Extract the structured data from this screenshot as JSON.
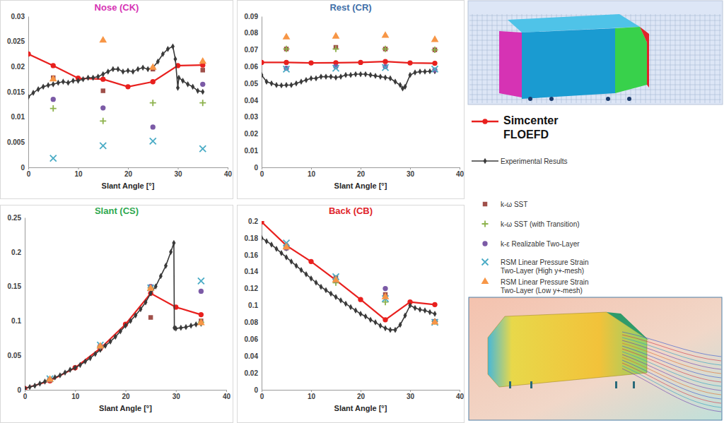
{
  "chart_data": [
    {
      "type": "line",
      "title": "Nose (CK)",
      "color": "#d633b4",
      "xlabel": "Slant Angle [°]",
      "xlim": [
        0,
        40
      ],
      "xticks": [
        0,
        10,
        20,
        30,
        40
      ],
      "ylim": [
        0,
        0.03
      ],
      "yticks": [
        0,
        0.005,
        0.01,
        0.015,
        0.02,
        0.025,
        0.03
      ],
      "grid": false,
      "legend": "right",
      "series": [
        {
          "name": "Simcenter FLOEFD",
          "type": "line",
          "color": "#e8201e",
          "marker": "circle",
          "line_style": "solid",
          "x": [
            0,
            5,
            10,
            15,
            20,
            25,
            30,
            35
          ],
          "values": [
            0.0225,
            0.0202,
            0.0177,
            0.0175,
            0.016,
            0.017,
            0.0202,
            0.0203
          ]
        },
        {
          "name": "Experimental Results",
          "type": "line",
          "color": "#3a3a3a",
          "marker": "diamond",
          "line_style": "solid",
          "x": [
            0,
            1,
            2,
            3,
            4,
            5,
            6,
            7,
            8,
            9,
            10,
            11,
            12,
            13,
            14,
            15,
            16,
            17,
            18,
            19,
            20,
            21,
            22,
            23,
            24,
            25,
            26,
            27,
            28,
            29,
            29.5,
            30,
            30.2,
            31,
            32,
            33,
            34,
            35
          ],
          "values": [
            0.014,
            0.0148,
            0.0155,
            0.016,
            0.0163,
            0.0165,
            0.0168,
            0.017,
            0.0168,
            0.0172,
            0.0172,
            0.0175,
            0.0178,
            0.0178,
            0.018,
            0.0185,
            0.019,
            0.0195,
            0.0195,
            0.019,
            0.0192,
            0.019,
            0.0195,
            0.0198,
            0.0195,
            0.0198,
            0.021,
            0.0225,
            0.0235,
            0.024,
            0.0215,
            0.0158,
            0.0178,
            0.0172,
            0.0165,
            0.016,
            0.0152,
            0.015
          ]
        },
        {
          "name": "k-ω SST",
          "type": "scatter",
          "color": "#a0504a",
          "marker": "square",
          "x": [
            5,
            15,
            25,
            35
          ],
          "values": [
            0.0178,
            0.0152,
            0.0195,
            0.0193
          ]
        },
        {
          "name": "k-ω SST (with Transition)",
          "type": "scatter",
          "color": "#8db24c",
          "marker": "plus",
          "x": [
            5,
            15,
            25,
            35
          ],
          "values": [
            0.0117,
            0.0092,
            0.0128,
            0.0128
          ]
        },
        {
          "name": "k-ε Realizable Two-Layer",
          "type": "scatter",
          "color": "#7b5aa6",
          "marker": "circle",
          "x": [
            5,
            15,
            25,
            35
          ],
          "values": [
            0.0135,
            0.0118,
            0.008,
            0.0165
          ]
        },
        {
          "name": "RSM Linear Pressure Strain Two-Layer (High y+-mesh)",
          "type": "scatter",
          "color": "#4bacc6",
          "marker": "x",
          "x": [
            5,
            15,
            25,
            35
          ],
          "values": [
            0.0018,
            0.0043,
            0.0052,
            0.0037
          ]
        },
        {
          "name": "RSM Linear Pressure Strain Two-Layer (Low y+-mesh)",
          "type": "scatter",
          "color": "#f79646",
          "marker": "triangle",
          "x": [
            5,
            15,
            25,
            35
          ],
          "values": [
            0.0175,
            0.0252,
            0.0198,
            0.021
          ]
        }
      ]
    },
    {
      "type": "line",
      "title": "Rest (CR)",
      "color": "#3f6fa8",
      "xlabel": "Slant Angle [°]",
      "xlim": [
        0,
        40
      ],
      "xticks": [
        0,
        10,
        20,
        30,
        40
      ],
      "ylim": [
        0,
        0.09
      ],
      "yticks": [
        0,
        0.01,
        0.02,
        0.03,
        0.04,
        0.05,
        0.06,
        0.07,
        0.08,
        0.09
      ],
      "grid": false,
      "series": [
        {
          "type": "line",
          "color": "#e8201e",
          "marker": "circle",
          "line_style": "solid",
          "x": [
            0,
            5,
            10,
            15,
            20,
            25,
            30,
            35
          ],
          "values": [
            0.0625,
            0.0625,
            0.0622,
            0.0623,
            0.0625,
            0.063,
            0.0622,
            0.062
          ]
        },
        {
          "type": "line",
          "color": "#3a3a3a",
          "marker": "diamond",
          "line_style": "solid",
          "x": [
            0,
            1,
            2,
            3,
            4,
            5,
            6,
            7,
            8,
            9,
            10,
            11,
            12,
            13,
            14,
            15,
            16,
            17,
            18,
            19,
            20,
            21,
            22,
            23,
            24,
            25,
            26,
            27,
            28,
            28.5,
            29,
            30,
            31,
            32,
            33,
            34,
            35
          ],
          "values": [
            0.055,
            0.051,
            0.05,
            0.049,
            0.0488,
            0.049,
            0.049,
            0.05,
            0.051,
            0.052,
            0.053,
            0.053,
            0.054,
            0.054,
            0.054,
            0.0535,
            0.054,
            0.055,
            0.055,
            0.0555,
            0.0555,
            0.0555,
            0.055,
            0.0545,
            0.054,
            0.0535,
            0.053,
            0.051,
            0.049,
            0.047,
            0.048,
            0.055,
            0.0565,
            0.057,
            0.057,
            0.0572,
            0.0572
          ]
        },
        {
          "type": "scatter",
          "color": "#a0504a",
          "marker": "square",
          "x": [
            5,
            15,
            25,
            35
          ],
          "values": [
            0.0705,
            0.0715,
            0.0705,
            0.07
          ]
        },
        {
          "type": "scatter",
          "color": "#8db24c",
          "marker": "plus",
          "x": [
            5,
            15,
            25,
            35
          ],
          "values": [
            0.0705,
            0.0705,
            0.0705,
            0.07
          ]
        },
        {
          "type": "scatter",
          "color": "#7b5aa6",
          "marker": "circle",
          "x": [
            5,
            15,
            25,
            35
          ],
          "values": [
            0.059,
            0.06,
            0.06,
            0.058
          ]
        },
        {
          "type": "scatter",
          "color": "#4bacc6",
          "marker": "x",
          "x": [
            5,
            15,
            25,
            35
          ],
          "values": [
            0.0585,
            0.059,
            0.0595,
            0.0585
          ]
        },
        {
          "type": "scatter",
          "color": "#f79646",
          "marker": "triangle",
          "x": [
            5,
            15,
            25,
            35
          ],
          "values": [
            0.0775,
            0.078,
            0.0785,
            0.076
          ]
        }
      ]
    },
    {
      "type": "line",
      "title": "Slant (CS)",
      "color": "#2fa84f",
      "xlabel": "Slant Angle [°]",
      "xlim": [
        0,
        40
      ],
      "xticks": [
        0,
        10,
        20,
        30,
        40
      ],
      "ylim": [
        0,
        0.25
      ],
      "yticks": [
        0,
        0.05,
        0.1,
        0.15,
        0.2,
        0.25
      ],
      "grid": false,
      "series": [
        {
          "type": "line",
          "color": "#e8201e",
          "marker": "circle",
          "line_style": "solid",
          "x": [
            0,
            5,
            10,
            15,
            20,
            25,
            30,
            35
          ],
          "values": [
            0.002,
            0.013,
            0.032,
            0.06,
            0.095,
            0.14,
            0.12,
            0.109
          ]
        },
        {
          "type": "line",
          "color": "#3a3a3a",
          "marker": "diamond",
          "line_style": "solid",
          "x": [
            0,
            1,
            2,
            3,
            4,
            5,
            6,
            7,
            8,
            9,
            10,
            11,
            12,
            13,
            14,
            15,
            16,
            17,
            18,
            19,
            20,
            21,
            22,
            23,
            24,
            25,
            26,
            27,
            28,
            29,
            29.6,
            29.7,
            30,
            31,
            32,
            33,
            34,
            35
          ],
          "values": [
            0.002,
            0.004,
            0.006,
            0.009,
            0.012,
            0.015,
            0.018,
            0.021,
            0.025,
            0.029,
            0.032,
            0.036,
            0.041,
            0.046,
            0.052,
            0.058,
            0.064,
            0.07,
            0.077,
            0.085,
            0.093,
            0.1,
            0.108,
            0.117,
            0.127,
            0.14,
            0.15,
            0.165,
            0.18,
            0.2,
            0.213,
            0.09,
            0.089,
            0.09,
            0.091,
            0.093,
            0.095,
            0.096
          ]
        },
        {
          "type": "scatter",
          "color": "#a0504a",
          "marker": "square",
          "x": [
            5,
            15,
            25,
            35
          ],
          "values": [
            0.015,
            0.063,
            0.105,
            0.1
          ]
        },
        {
          "type": "scatter",
          "color": "#8db24c",
          "marker": "plus",
          "x": [
            5,
            15,
            25,
            35
          ],
          "values": [
            0.015,
            0.063,
            0.148,
            0.098
          ]
        },
        {
          "type": "scatter",
          "color": "#7b5aa6",
          "marker": "circle",
          "x": [
            5,
            15,
            25,
            35
          ],
          "values": [
            0.015,
            0.063,
            0.15,
            0.143
          ]
        },
        {
          "type": "scatter",
          "color": "#4bacc6",
          "marker": "x",
          "x": [
            5,
            15,
            25,
            35
          ],
          "values": [
            0.016,
            0.065,
            0.148,
            0.158
          ]
        },
        {
          "type": "scatter",
          "color": "#f79646",
          "marker": "triangle",
          "x": [
            5,
            15,
            25,
            35
          ],
          "values": [
            0.015,
            0.063,
            0.147,
            0.097
          ]
        }
      ]
    },
    {
      "type": "line",
      "title": "Back (CB)",
      "color": "#e0242a",
      "xlabel": "Slant Angle [°]",
      "xlim": [
        0,
        40
      ],
      "xticks": [
        0,
        10,
        20,
        30,
        40
      ],
      "ylim": [
        0,
        0.2
      ],
      "yticks": [
        0,
        0.02,
        0.04,
        0.06,
        0.08,
        0.1,
        0.12,
        0.14,
        0.16,
        0.18,
        0.2
      ],
      "grid": false,
      "series": [
        {
          "type": "line",
          "color": "#e8201e",
          "marker": "circle",
          "line_style": "solid",
          "x": [
            0,
            5,
            10,
            15,
            20,
            25,
            30,
            35
          ],
          "values": [
            0.199,
            0.171,
            0.152,
            0.13,
            0.107,
            0.083,
            0.104,
            0.101
          ]
        },
        {
          "type": "line",
          "color": "#3a3a3a",
          "marker": "diamond",
          "line_style": "solid",
          "x": [
            0,
            1,
            2,
            3,
            4,
            5,
            6,
            7,
            8,
            9,
            10,
            11,
            12,
            13,
            14,
            15,
            16,
            17,
            18,
            19,
            20,
            21,
            22,
            23,
            24,
            25,
            26,
            27,
            28,
            29,
            30,
            31,
            32,
            33,
            34,
            35
          ],
          "values": [
            0.18,
            0.176,
            0.172,
            0.167,
            0.162,
            0.157,
            0.152,
            0.147,
            0.142,
            0.137,
            0.132,
            0.127,
            0.122,
            0.118,
            0.114,
            0.11,
            0.106,
            0.102,
            0.098,
            0.094,
            0.09,
            0.087,
            0.083,
            0.08,
            0.076,
            0.073,
            0.071,
            0.071,
            0.077,
            0.088,
            0.1,
            0.097,
            0.095,
            0.094,
            0.092,
            0.09
          ]
        },
        {
          "type": "scatter",
          "color": "#a0504a",
          "marker": "square",
          "x": [
            5,
            15,
            25,
            35
          ],
          "values": [
            0.168,
            0.133,
            0.113,
            0.081
          ]
        },
        {
          "type": "scatter",
          "color": "#8db24c",
          "marker": "plus",
          "x": [
            5,
            15,
            25,
            35
          ],
          "values": [
            0.168,
            0.127,
            0.104,
            0.081
          ]
        },
        {
          "type": "scatter",
          "color": "#7b5aa6",
          "marker": "circle",
          "x": [
            5,
            15,
            25,
            35
          ],
          "values": [
            0.168,
            0.13,
            0.12,
            0.081
          ]
        },
        {
          "type": "scatter",
          "color": "#4bacc6",
          "marker": "x",
          "x": [
            5,
            15,
            25,
            35
          ],
          "values": [
            0.174,
            0.134,
            0.108,
            0.08
          ]
        },
        {
          "type": "scatter",
          "color": "#f79646",
          "marker": "triangle",
          "x": [
            5,
            15,
            25,
            35
          ],
          "values": [
            0.169,
            0.13,
            0.11,
            0.08
          ]
        }
      ]
    }
  ]
}
